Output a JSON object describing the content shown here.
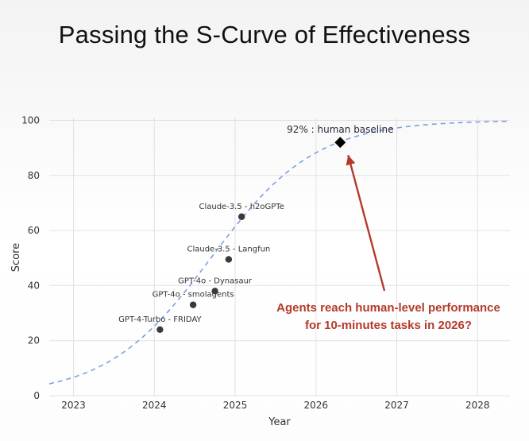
{
  "title": "Passing the S-Curve of Effectiveness",
  "chart_data": {
    "type": "scatter",
    "xlabel": "Year",
    "ylabel": "Score",
    "xlim": [
      2022.7,
      2028.4
    ],
    "ylim": [
      0,
      101
    ],
    "x_ticks": [
      "2023",
      "2024",
      "2025",
      "2026",
      "2027",
      "2028"
    ],
    "y_ticks": [
      "0",
      "20",
      "40",
      "60",
      "80",
      "100"
    ],
    "grid": true,
    "points": [
      {
        "label": "GPT-4-Turbo - FRIDAY",
        "x": 2024.07,
        "y": 24
      },
      {
        "label": "GPT-4o - smolagents",
        "x": 2024.48,
        "y": 33
      },
      {
        "label": "GPT-4o - Dynasaur",
        "x": 2024.75,
        "y": 38
      },
      {
        "label": "Claude-3.5 - Langfun",
        "x": 2024.92,
        "y": 49.5
      },
      {
        "label": "Claude-3.5 - h2oGPTe",
        "x": 2025.08,
        "y": 65
      }
    ],
    "milestone": {
      "label": "92% : human baseline",
      "x": 2026.3,
      "y": 92
    },
    "trend_curve": {
      "style": "dashed",
      "color": "#7f9fe0"
    },
    "annotation": {
      "lines": [
        "Agents reach human-level performance",
        "for 10-minutes tasks in 2026?"
      ],
      "color": "#b33a2b"
    }
  }
}
